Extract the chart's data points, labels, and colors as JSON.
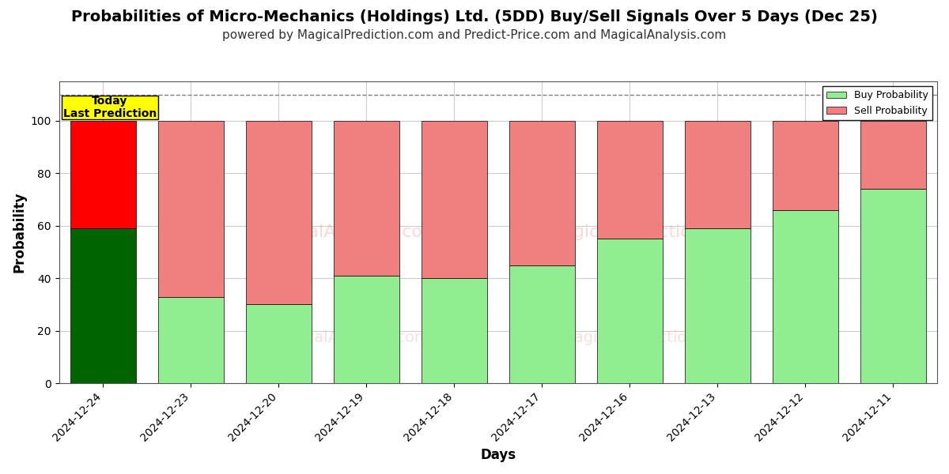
{
  "title": "Probabilities of Micro-Mechanics (Holdings) Ltd. (5DD) Buy/Sell Signals Over 5 Days (Dec 25)",
  "subtitle": "powered by MagicalPrediction.com and Predict-Price.com and MagicalAnalysis.com",
  "xlabel": "Days",
  "ylabel": "Probability",
  "categories": [
    "2024-12-24",
    "2024-12-23",
    "2024-12-20",
    "2024-12-19",
    "2024-12-18",
    "2024-12-17",
    "2024-12-16",
    "2024-12-13",
    "2024-12-12",
    "2024-12-11"
  ],
  "buy_values": [
    59,
    33,
    30,
    41,
    40,
    45,
    55,
    59,
    66,
    74
  ],
  "sell_values": [
    41,
    67,
    70,
    59,
    60,
    55,
    45,
    41,
    34,
    26
  ],
  "buy_colors": [
    "#006400",
    "#90EE90",
    "#90EE90",
    "#90EE90",
    "#90EE90",
    "#90EE90",
    "#90EE90",
    "#90EE90",
    "#90EE90",
    "#90EE90"
  ],
  "sell_colors": [
    "#FF0000",
    "#F08080",
    "#F08080",
    "#F08080",
    "#F08080",
    "#F08080",
    "#F08080",
    "#F08080",
    "#F08080",
    "#F08080"
  ],
  "legend_buy_color": "#90EE90",
  "legend_sell_color": "#F08080",
  "today_box_color": "#FFFF00",
  "today_label": "Today\nLast Prediction",
  "dashed_line_y": 110,
  "ylim": [
    0,
    115
  ],
  "yticks": [
    0,
    20,
    40,
    60,
    80,
    100
  ],
  "title_fontsize": 14,
  "subtitle_fontsize": 11,
  "label_fontsize": 12,
  "background_color": "#ffffff",
  "grid_color": "#cccccc",
  "bar_width": 0.75
}
